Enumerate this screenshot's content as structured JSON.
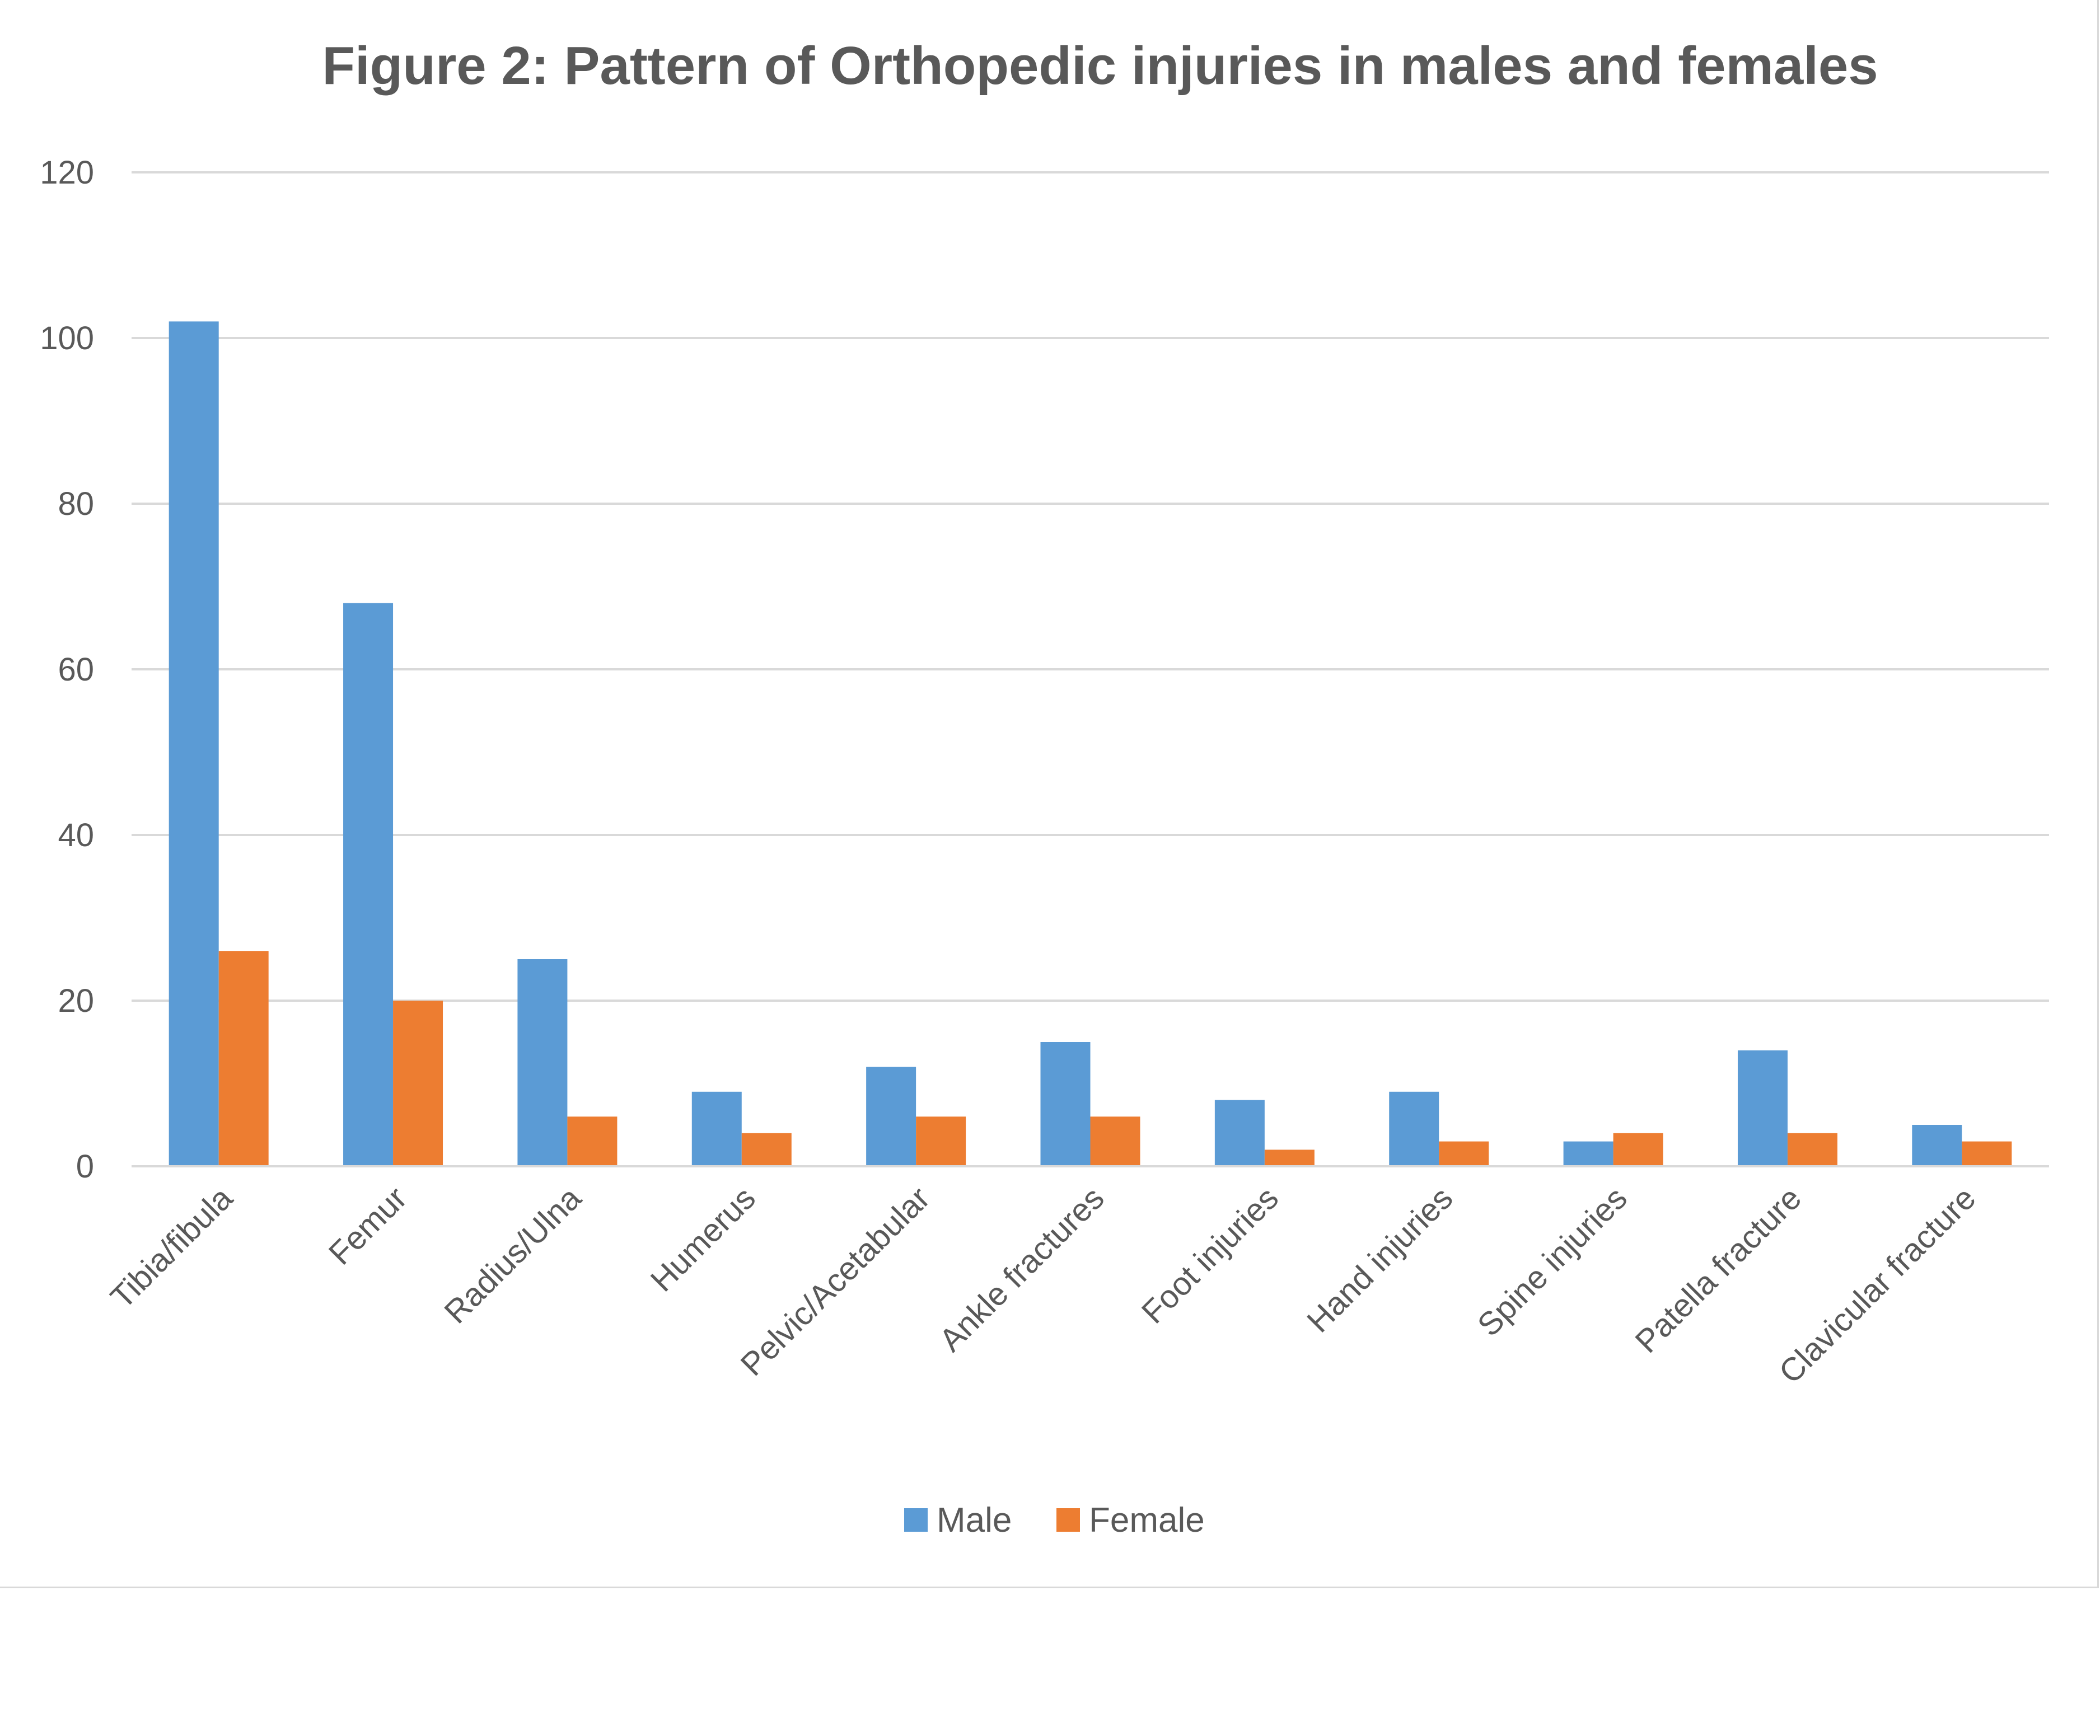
{
  "chart_data": {
    "type": "bar",
    "title": "Figure 2: Pattern of Orthopedic injuries in males and females",
    "xlabel": "",
    "ylabel": "",
    "ylim": [
      0,
      120
    ],
    "yticks": [
      0,
      20,
      40,
      60,
      80,
      100,
      120
    ],
    "grid": true,
    "legend_position": "bottom",
    "categories": [
      "Tibia/fibula",
      "Femur",
      "Radius/Ulna",
      "Humerus",
      "Pelvic/Acetabular",
      "Ankle fractures",
      "Foot injuries",
      "Hand injuries",
      "Spine injuries",
      "Patella fracture",
      "Clavicular fracture"
    ],
    "series": [
      {
        "name": "Male",
        "color": "#5b9bd5",
        "values": [
          102,
          68,
          25,
          9,
          12,
          15,
          8,
          9,
          3,
          14,
          5
        ]
      },
      {
        "name": "Female",
        "color": "#ed7d31",
        "values": [
          26,
          20,
          6,
          4,
          6,
          6,
          2,
          3,
          4,
          4,
          3
        ]
      }
    ]
  }
}
